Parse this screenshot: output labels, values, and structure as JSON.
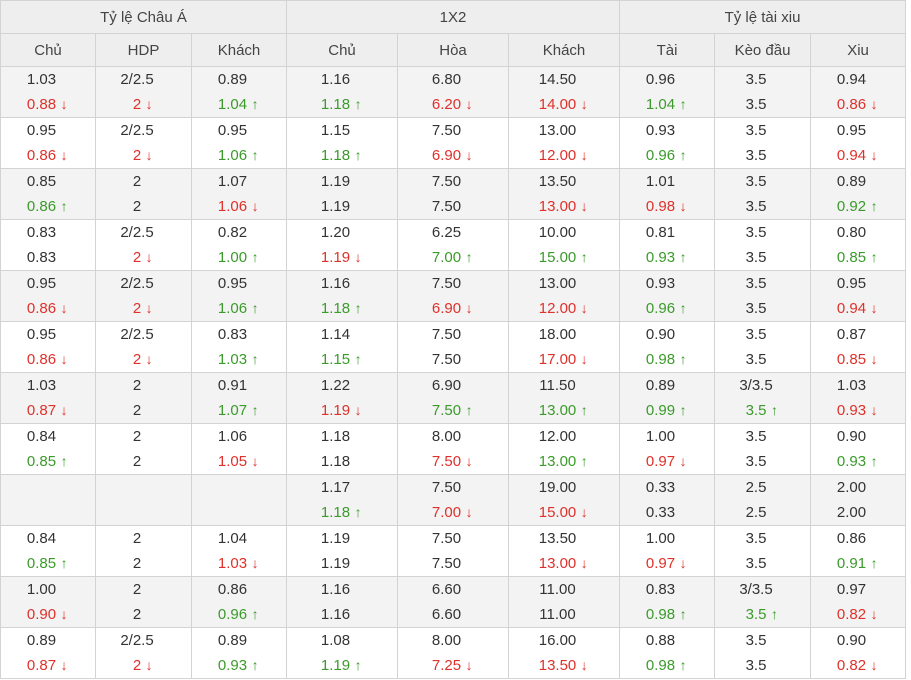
{
  "headers": {
    "groups": [
      "Tỷ lệ Châu Á",
      "1X2",
      "Tỷ lệ tài xiu"
    ],
    "columns": [
      "Chủ",
      "HDP",
      "Khách",
      "Chủ",
      "Hòa",
      "Khách",
      "Tài",
      "Kèo đầu",
      "Xiu"
    ]
  },
  "colors": {
    "up": "#3a9b2a",
    "down": "#e0302a",
    "shade": "#f3f3f3",
    "header_bg": "#eeeeee"
  },
  "rows": [
    {
      "shade": true,
      "top": [
        "1.03",
        "2/2.5",
        "0.89",
        "1.16",
        "6.80",
        "14.50",
        "0.96",
        "3.5",
        "0.94"
      ],
      "bottom": [
        [
          "0.88",
          "down"
        ],
        [
          "2",
          "down"
        ],
        [
          "1.04",
          "up"
        ],
        [
          "1.18",
          "up"
        ],
        [
          "6.20",
          "down"
        ],
        [
          "14.00",
          "down"
        ],
        [
          "1.04",
          "up"
        ],
        [
          "3.5",
          ""
        ],
        [
          "0.86",
          "down"
        ]
      ]
    },
    {
      "shade": false,
      "top": [
        "0.95",
        "2/2.5",
        "0.95",
        "1.15",
        "7.50",
        "13.00",
        "0.93",
        "3.5",
        "0.95"
      ],
      "bottom": [
        [
          "0.86",
          "down"
        ],
        [
          "2",
          "down"
        ],
        [
          "1.06",
          "up"
        ],
        [
          "1.18",
          "up"
        ],
        [
          "6.90",
          "down"
        ],
        [
          "12.00",
          "down"
        ],
        [
          "0.96",
          "up"
        ],
        [
          "3.5",
          ""
        ],
        [
          "0.94",
          "down"
        ]
      ]
    },
    {
      "shade": true,
      "top": [
        "0.85",
        "2",
        "1.07",
        "1.19",
        "7.50",
        "13.50",
        "1.01",
        "3.5",
        "0.89"
      ],
      "bottom": [
        [
          "0.86",
          "up"
        ],
        [
          "2",
          ""
        ],
        [
          "1.06",
          "down"
        ],
        [
          "1.19",
          ""
        ],
        [
          "7.50",
          ""
        ],
        [
          "13.00",
          "down"
        ],
        [
          "0.98",
          "down"
        ],
        [
          "3.5",
          ""
        ],
        [
          "0.92",
          "up"
        ]
      ]
    },
    {
      "shade": false,
      "top": [
        "0.83",
        "2/2.5",
        "0.82",
        "1.20",
        "6.25",
        "10.00",
        "0.81",
        "3.5",
        "0.80"
      ],
      "bottom": [
        [
          "0.83",
          ""
        ],
        [
          "2",
          "down"
        ],
        [
          "1.00",
          "up"
        ],
        [
          "1.19",
          "down"
        ],
        [
          "7.00",
          "up"
        ],
        [
          "15.00",
          "up"
        ],
        [
          "0.93",
          "up"
        ],
        [
          "3.5",
          ""
        ],
        [
          "0.85",
          "up"
        ]
      ]
    },
    {
      "shade": true,
      "top": [
        "0.95",
        "2/2.5",
        "0.95",
        "1.16",
        "7.50",
        "13.00",
        "0.93",
        "3.5",
        "0.95"
      ],
      "bottom": [
        [
          "0.86",
          "down"
        ],
        [
          "2",
          "down"
        ],
        [
          "1.06",
          "up"
        ],
        [
          "1.18",
          "up"
        ],
        [
          "6.90",
          "down"
        ],
        [
          "12.00",
          "down"
        ],
        [
          "0.96",
          "up"
        ],
        [
          "3.5",
          ""
        ],
        [
          "0.94",
          "down"
        ]
      ]
    },
    {
      "shade": false,
      "top": [
        "0.95",
        "2/2.5",
        "0.83",
        "1.14",
        "7.50",
        "18.00",
        "0.90",
        "3.5",
        "0.87"
      ],
      "bottom": [
        [
          "0.86",
          "down"
        ],
        [
          "2",
          "down"
        ],
        [
          "1.03",
          "up"
        ],
        [
          "1.15",
          "up"
        ],
        [
          "7.50",
          ""
        ],
        [
          "17.00",
          "down"
        ],
        [
          "0.98",
          "up"
        ],
        [
          "3.5",
          ""
        ],
        [
          "0.85",
          "down"
        ]
      ]
    },
    {
      "shade": true,
      "top": [
        "1.03",
        "2",
        "0.91",
        "1.22",
        "6.90",
        "11.50",
        "0.89",
        "3/3.5",
        "1.03"
      ],
      "bottom": [
        [
          "0.87",
          "down"
        ],
        [
          "2",
          ""
        ],
        [
          "1.07",
          "up"
        ],
        [
          "1.19",
          "down"
        ],
        [
          "7.50",
          "up"
        ],
        [
          "13.00",
          "up"
        ],
        [
          "0.99",
          "up"
        ],
        [
          "3.5",
          "up"
        ],
        [
          "0.93",
          "down"
        ]
      ]
    },
    {
      "shade": false,
      "top": [
        "0.84",
        "2",
        "1.06",
        "1.18",
        "8.00",
        "12.00",
        "1.00",
        "3.5",
        "0.90"
      ],
      "bottom": [
        [
          "0.85",
          "up"
        ],
        [
          "2",
          ""
        ],
        [
          "1.05",
          "down"
        ],
        [
          "1.18",
          ""
        ],
        [
          "7.50",
          "down"
        ],
        [
          "13.00",
          "up"
        ],
        [
          "0.97",
          "down"
        ],
        [
          "3.5",
          ""
        ],
        [
          "0.93",
          "up"
        ]
      ]
    },
    {
      "shade": true,
      "top": [
        "",
        "",
        "",
        "1.17",
        "7.50",
        "19.00",
        "0.33",
        "2.5",
        "2.00"
      ],
      "bottom": [
        [
          "",
          ""
        ],
        [
          "",
          ""
        ],
        [
          "",
          ""
        ],
        [
          "1.18",
          "up"
        ],
        [
          "7.00",
          "down"
        ],
        [
          "15.00",
          "down"
        ],
        [
          "0.33",
          ""
        ],
        [
          "2.5",
          ""
        ],
        [
          "2.00",
          ""
        ]
      ]
    },
    {
      "shade": false,
      "top": [
        "0.84",
        "2",
        "1.04",
        "1.19",
        "7.50",
        "13.50",
        "1.00",
        "3.5",
        "0.86"
      ],
      "bottom": [
        [
          "0.85",
          "up"
        ],
        [
          "2",
          ""
        ],
        [
          "1.03",
          "down"
        ],
        [
          "1.19",
          ""
        ],
        [
          "7.50",
          ""
        ],
        [
          "13.00",
          "down"
        ],
        [
          "0.97",
          "down"
        ],
        [
          "3.5",
          ""
        ],
        [
          "0.91",
          "up"
        ]
      ]
    },
    {
      "shade": true,
      "top": [
        "1.00",
        "2",
        "0.86",
        "1.16",
        "6.60",
        "11.00",
        "0.83",
        "3/3.5",
        "0.97"
      ],
      "bottom": [
        [
          "0.90",
          "down"
        ],
        [
          "2",
          ""
        ],
        [
          "0.96",
          "up"
        ],
        [
          "1.16",
          ""
        ],
        [
          "6.60",
          ""
        ],
        [
          "11.00",
          ""
        ],
        [
          "0.98",
          "up"
        ],
        [
          "3.5",
          "up"
        ],
        [
          "0.82",
          "down"
        ]
      ]
    },
    {
      "shade": false,
      "top": [
        "0.89",
        "2/2.5",
        "0.89",
        "1.08",
        "8.00",
        "16.00",
        "0.88",
        "3.5",
        "0.90"
      ],
      "bottom": [
        [
          "0.87",
          "down"
        ],
        [
          "2",
          "down"
        ],
        [
          "0.93",
          "up"
        ],
        [
          "1.19",
          "up"
        ],
        [
          "7.25",
          "down"
        ],
        [
          "13.50",
          "down"
        ],
        [
          "0.98",
          "up"
        ],
        [
          "3.5",
          ""
        ],
        [
          "0.82",
          "down"
        ]
      ]
    }
  ]
}
